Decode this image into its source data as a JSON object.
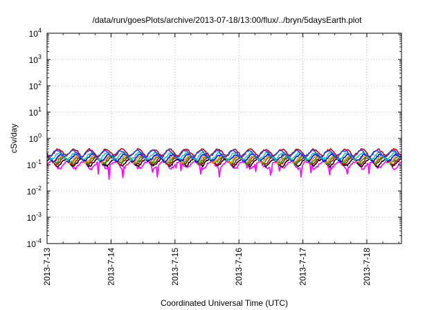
{
  "chart_data": {
    "type": "line",
    "title": "/data/run/goesPlots/archive/2013-07-18/13:00/flux/../bryn/5daysEarth.plot",
    "xlabel": "Coordinated Universal Time (UTC)",
    "ylabel": "cSv/day",
    "y_scale": "log",
    "ylim": [
      0.0001,
      10000
    ],
    "xlim": [
      "2013-07-13",
      "2013-07-18 13:00"
    ],
    "x_ticks": [
      "2013-7-13",
      "2013-7-14",
      "2013-7-15",
      "2013-7-16",
      "2013-7-17",
      "2013-7-18"
    ],
    "y_ticks": [
      {
        "base": "10",
        "exp": "-4"
      },
      {
        "base": "10",
        "exp": "-3"
      },
      {
        "base": "10",
        "exp": "-2"
      },
      {
        "base": "10",
        "exp": "-1"
      },
      {
        "base": "10",
        "exp": "0"
      },
      {
        "base": "10",
        "exp": "1"
      },
      {
        "base": "10",
        "exp": "2"
      },
      {
        "base": "10",
        "exp": "3"
      },
      {
        "base": "10",
        "exp": "4"
      }
    ],
    "grid": true,
    "legend": "none",
    "series": [
      {
        "color": "#ff00ff",
        "level": 0.1,
        "spikes": true
      },
      {
        "color": "#000000",
        "level": 0.125
      },
      {
        "color": "#cc0000",
        "level": 0.145
      },
      {
        "color": "#00aa00",
        "level": 0.16
      },
      {
        "color": "#ff8800",
        "level": 0.17
      },
      {
        "color": "#0000ff",
        "level": 0.19
      },
      {
        "color": "#00cccc",
        "level": 0.22
      },
      {
        "color": "#cc0000",
        "level": 0.3
      },
      {
        "color": "#2244ff",
        "level": 0.27
      }
    ]
  }
}
